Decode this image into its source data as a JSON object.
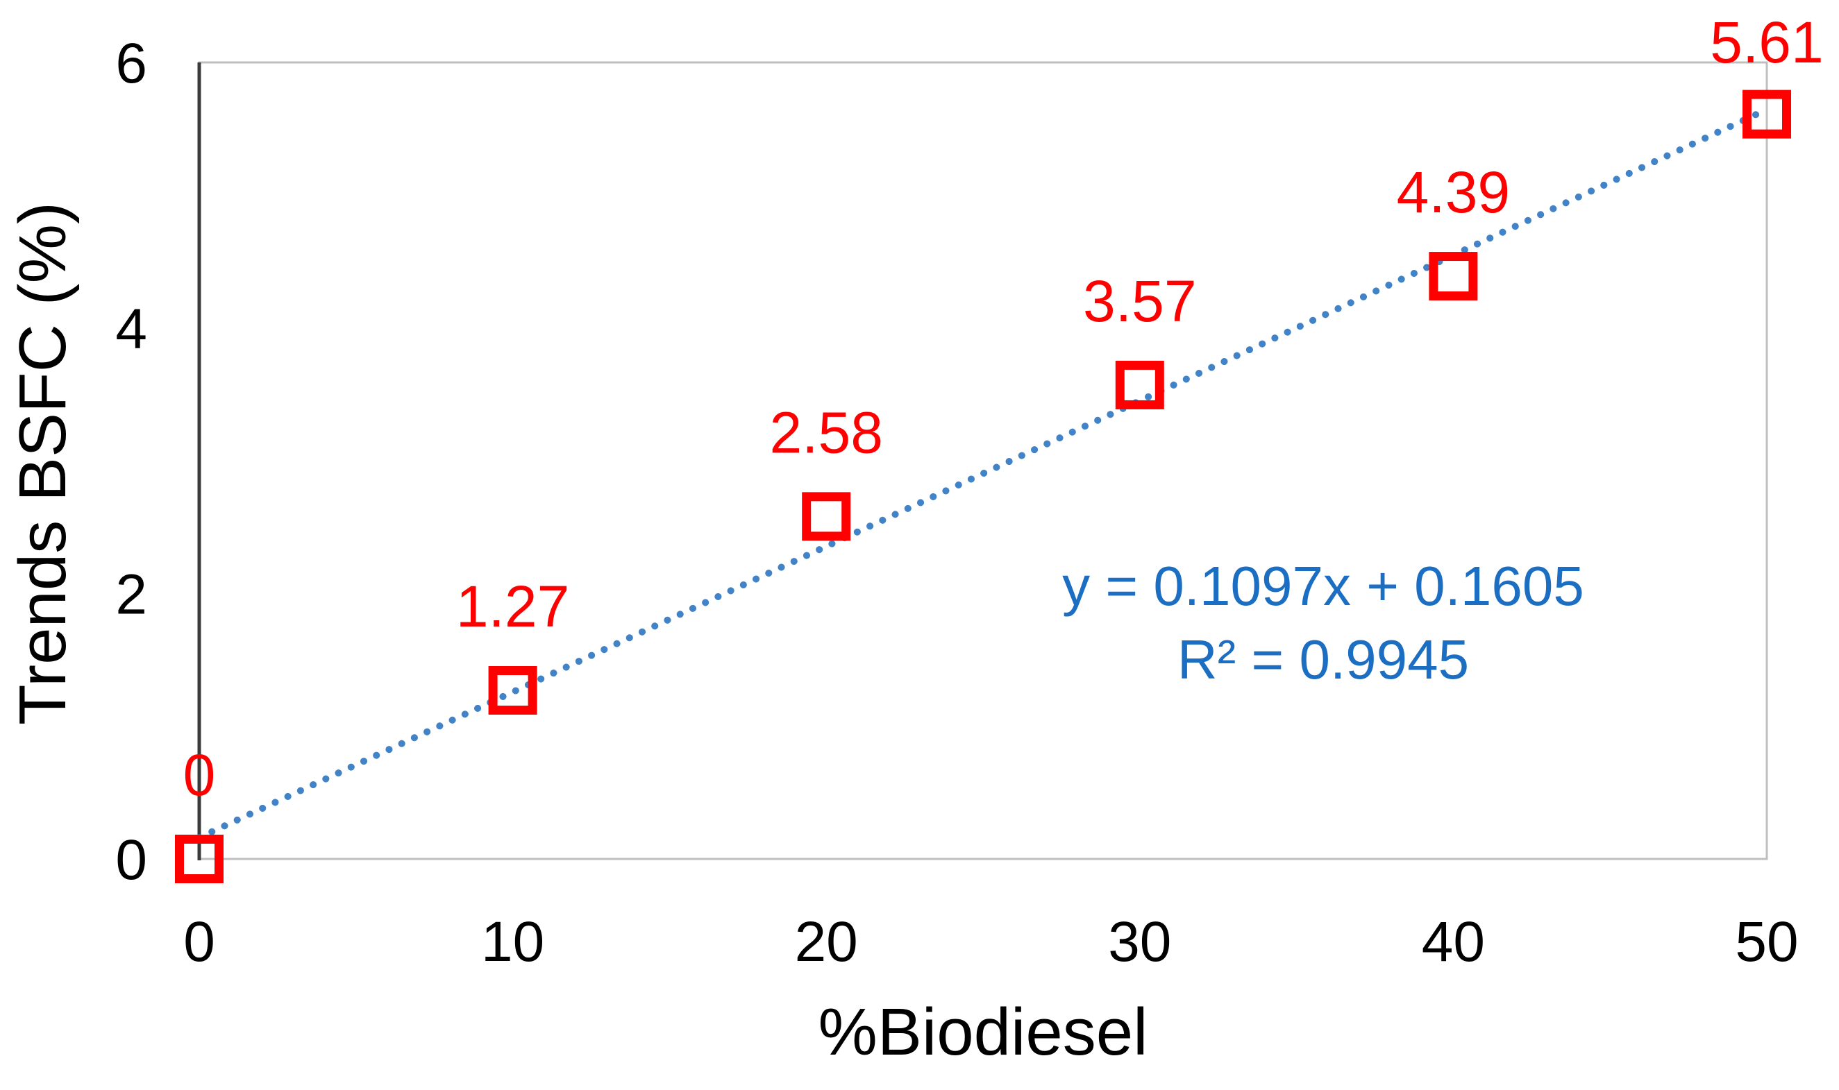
{
  "chart_data": {
    "type": "scatter",
    "title": "",
    "xlabel": "%Biodiesel",
    "ylabel": "Trends BSFC (%)",
    "x": [
      0,
      10,
      20,
      30,
      40,
      50
    ],
    "y": [
      0,
      1.27,
      2.58,
      3.57,
      4.39,
      5.61
    ],
    "point_labels": [
      "0",
      "1.27",
      "2.58",
      "3.57",
      "4.39",
      "5.61"
    ],
    "x_ticks": [
      "0",
      "10",
      "20",
      "30",
      "40",
      "50"
    ],
    "y_ticks": [
      "0",
      "2",
      "4",
      "6"
    ],
    "xlim": [
      0,
      50
    ],
    "ylim": [
      0,
      6
    ],
    "grid": false,
    "legend": "none",
    "marker": "open-square",
    "trendline": {
      "style": "dotted",
      "slope": 0.1097,
      "intercept": 0.1605,
      "equation": "y = 0.1097x + 0.1605",
      "r_squared": "R² = 0.9945"
    },
    "colors": {
      "marker": "#FF0000",
      "data_label": "#FF0000",
      "trendline": "#4183C6",
      "equation_text": "#1B6EC2",
      "axis_line": "#3B3B3B",
      "plot_border": "#BFBFBF",
      "tick_label": "#000000"
    }
  }
}
